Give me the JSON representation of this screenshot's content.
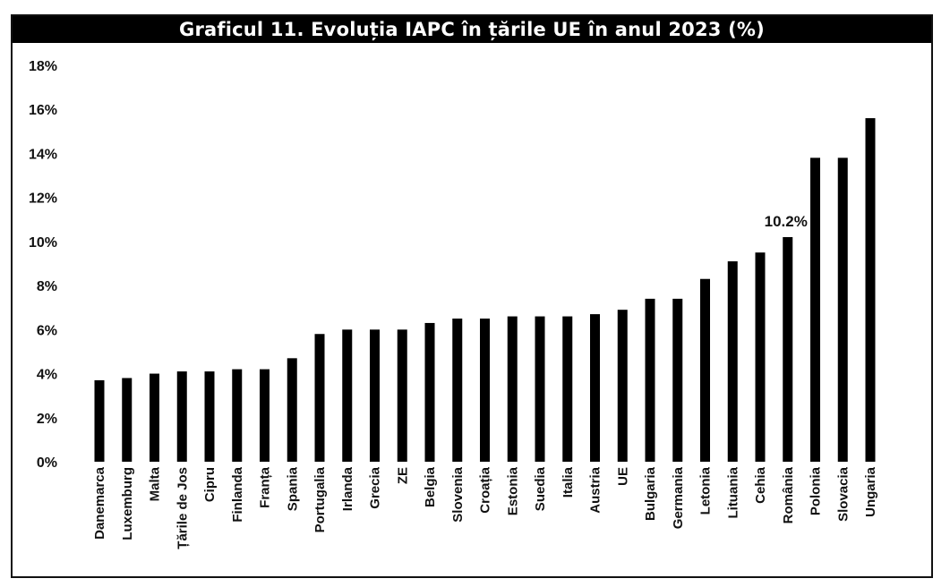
{
  "chart_data": {
    "type": "bar",
    "title": "Graficul 11. Evoluția IAPC în țările UE în anul 2023 (%)",
    "xlabel": "",
    "ylabel": "",
    "ylim": [
      0,
      18
    ],
    "ytick_labels": [
      "0%",
      "2%",
      "4%",
      "6%",
      "8%",
      "10%",
      "12%",
      "14%",
      "16%",
      "18%"
    ],
    "grid": false,
    "bar_color": "#000000",
    "categories": [
      "Danemarca",
      "Luxemburg",
      "Malta",
      "Țările de Jos",
      "Cipru",
      "Finlanda",
      "Franța",
      "Spania",
      "Portugalia",
      "Irlanda",
      "Grecia",
      "ZE",
      "Belgia",
      "Slovenia",
      "Croația",
      "Estonia",
      "Suedia",
      "Italia",
      "Austria",
      "UE",
      "Bulgaria",
      "Germania",
      "Letonia",
      "Lituania",
      "Cehia",
      "România",
      "Polonia",
      "Slovacia",
      "Ungaria"
    ],
    "values": [
      3.7,
      3.8,
      4.0,
      4.1,
      4.1,
      4.2,
      4.2,
      4.7,
      5.8,
      6.0,
      6.0,
      6.0,
      6.3,
      6.5,
      6.5,
      6.6,
      6.6,
      6.6,
      6.7,
      6.9,
      7.4,
      7.4,
      8.3,
      9.1,
      9.5,
      10.2,
      13.8,
      13.8,
      15.6
    ],
    "annotations": [
      {
        "category": "România",
        "text": "10.2%"
      }
    ]
  }
}
